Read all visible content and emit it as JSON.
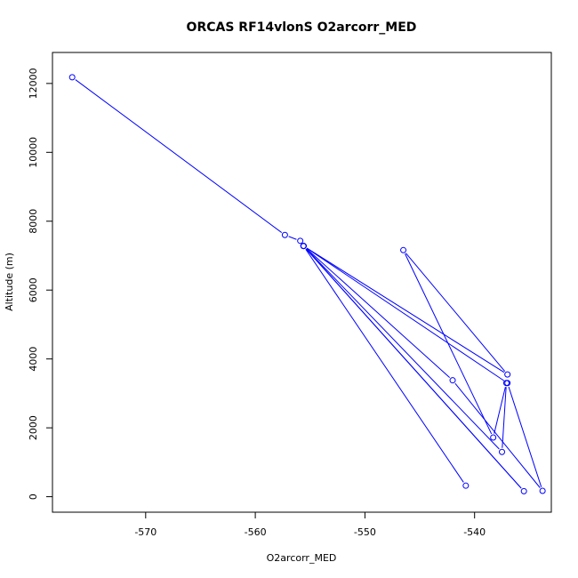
{
  "chart_data": {
    "type": "line",
    "title": "ORCAS RF14vlonS O2arcorr_MED",
    "xlabel": "O2arcorr_MED",
    "ylabel": "Altitude (m)",
    "xlim": [
      -578.5,
      -533
    ],
    "ylim": [
      -450,
      12900
    ],
    "xticks": [
      -570,
      -560,
      -550,
      -540
    ],
    "yticks": [
      0,
      2000,
      4000,
      6000,
      8000,
      10000,
      12000
    ],
    "grid": false,
    "legend": "none",
    "series": [
      {
        "color": "#0000ff",
        "marker": "open-circle",
        "points": [
          {
            "x": -576.7,
            "y": 12180
          },
          {
            "x": -557.3,
            "y": 7600
          },
          {
            "x": -555.9,
            "y": 7430
          },
          {
            "x": -555.6,
            "y": 7280
          },
          {
            "x": -537.0,
            "y": 3550
          },
          {
            "x": -546.5,
            "y": 7160
          },
          {
            "x": -538.3,
            "y": 1720
          },
          {
            "x": -537.1,
            "y": 3300
          },
          {
            "x": -537.5,
            "y": 1300
          },
          {
            "x": -555.6,
            "y": 7280
          },
          {
            "x": -542.0,
            "y": 3380
          },
          {
            "x": -533.8,
            "y": 170
          },
          {
            "x": -537.0,
            "y": 3300
          },
          {
            "x": -555.6,
            "y": 7280
          },
          {
            "x": -535.5,
            "y": 160
          },
          {
            "x": -555.6,
            "y": 7280
          },
          {
            "x": -540.8,
            "y": 320
          }
        ]
      }
    ]
  }
}
